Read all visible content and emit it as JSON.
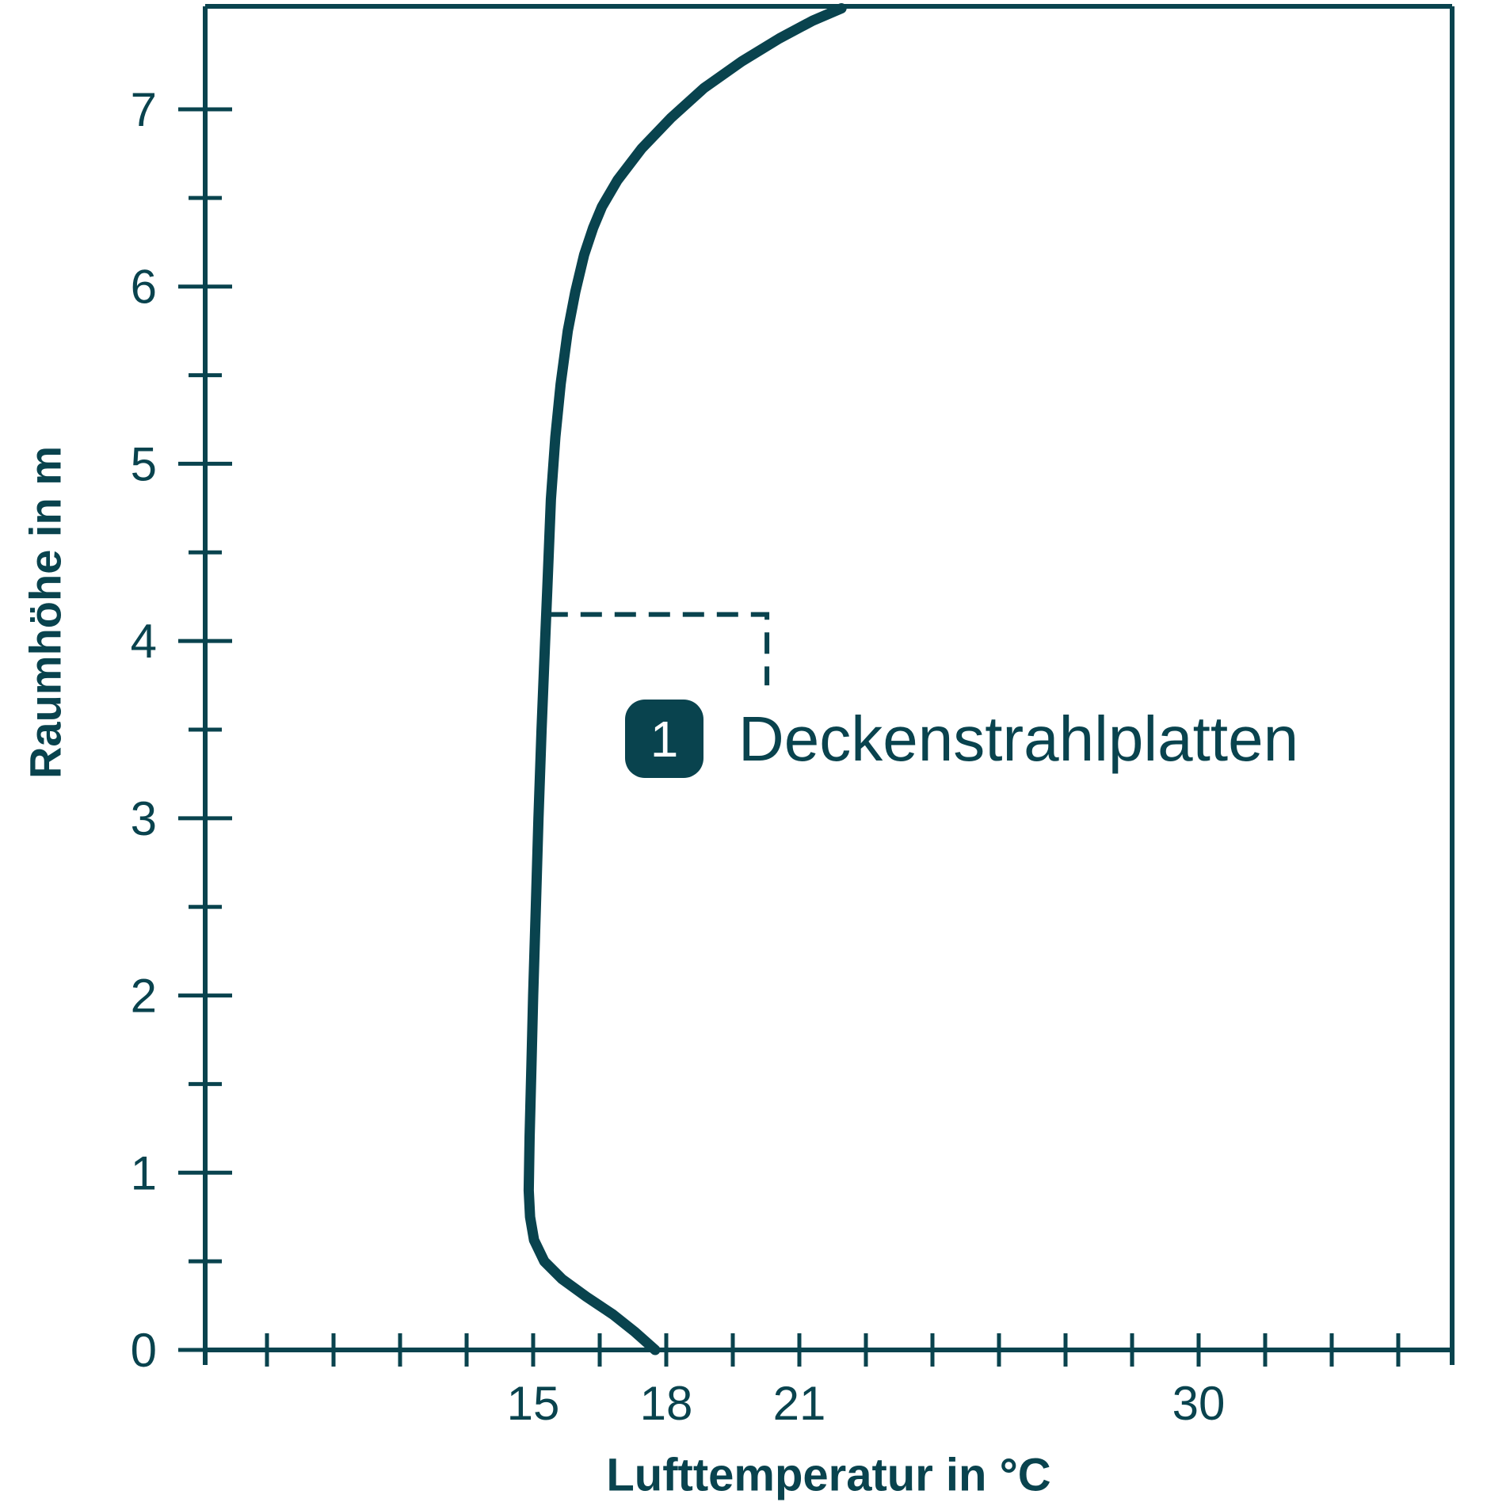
{
  "chart_data": {
    "type": "line",
    "title": "",
    "xlabel": "Lufttemperatur in °C",
    "ylabel": "Raumhöhe in m",
    "x_axis": {
      "unit": "°C",
      "range": [
        7.6,
        35.7
      ],
      "tick_start": 9,
      "tick_step": 1.5,
      "tick_end": 34.5,
      "labeled_ticks": [
        "15",
        "18",
        "21",
        "30"
      ],
      "grid": false
    },
    "y_axis": {
      "unit": "m",
      "range": [
        0,
        7.58
      ],
      "tick_start": 0,
      "tick_step": 0.5,
      "tick_end": 7,
      "labeled_ticks": [
        "0",
        "1",
        "2",
        "3",
        "4",
        "5",
        "6",
        "7"
      ],
      "grid": false
    },
    "series": [
      {
        "id": "1",
        "name": "Deckenstrahlplatten",
        "points_temp_height": [
          [
            17.75,
            0.0
          ],
          [
            17.3,
            0.1
          ],
          [
            16.8,
            0.2
          ],
          [
            16.2,
            0.3
          ],
          [
            15.65,
            0.4
          ],
          [
            15.25,
            0.5
          ],
          [
            15.02,
            0.62
          ],
          [
            14.93,
            0.75
          ],
          [
            14.9,
            0.9
          ],
          [
            14.92,
            1.2
          ],
          [
            14.96,
            1.6
          ],
          [
            15.0,
            2.0
          ],
          [
            15.06,
            2.5
          ],
          [
            15.12,
            3.0
          ],
          [
            15.19,
            3.5
          ],
          [
            15.27,
            4.0
          ],
          [
            15.32,
            4.3
          ],
          [
            15.4,
            4.8
          ],
          [
            15.5,
            5.15
          ],
          [
            15.62,
            5.45
          ],
          [
            15.78,
            5.75
          ],
          [
            15.95,
            5.97
          ],
          [
            16.15,
            6.18
          ],
          [
            16.35,
            6.33
          ],
          [
            16.55,
            6.45
          ],
          [
            16.9,
            6.6
          ],
          [
            17.45,
            6.78
          ],
          [
            18.1,
            6.95
          ],
          [
            18.85,
            7.12
          ],
          [
            19.7,
            7.27
          ],
          [
            20.55,
            7.4
          ],
          [
            21.3,
            7.5
          ],
          [
            21.95,
            7.57
          ]
        ]
      }
    ],
    "callout": {
      "style": "dashed",
      "from": [
        15.3,
        4.15
      ],
      "corner": [
        20.27,
        4.15
      ],
      "end": [
        20.27,
        3.75
      ]
    },
    "colors": {
      "ink": "#09434E",
      "badge_text": "#ffffff",
      "background": "#ffffff"
    },
    "legend_position": "inside-middle"
  },
  "legend": {
    "badge": "1",
    "label": "Deckenstrahlplatten"
  }
}
